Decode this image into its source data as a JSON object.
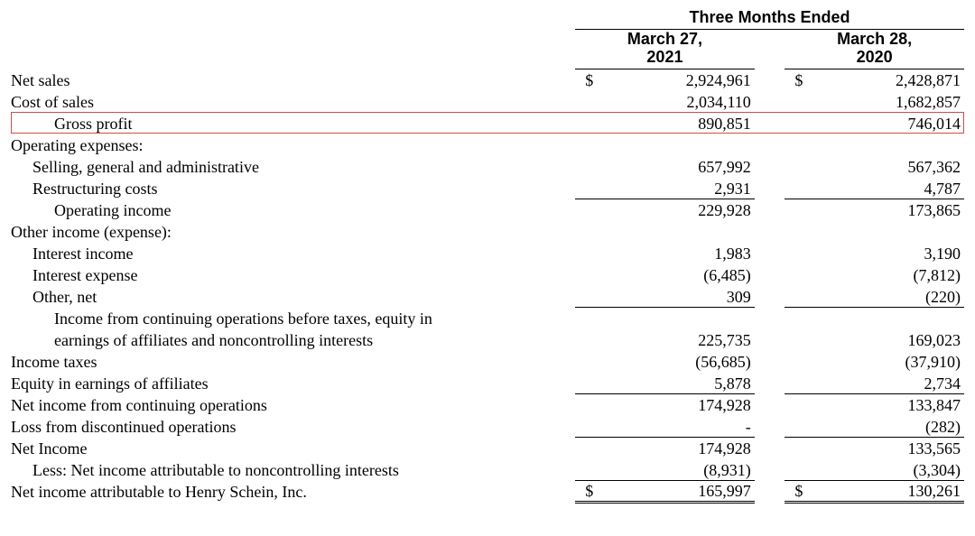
{
  "header": {
    "super": "Three Months Ended",
    "col1_line1": "March 27,",
    "col1_line2": "2021",
    "col2_line1": "March 28,",
    "col2_line2": "2020"
  },
  "rows": {
    "net_sales": {
      "label": "Net sales",
      "c1": "2,924,961",
      "c2": "2,428,871",
      "cur": "$"
    },
    "cost_sales": {
      "label": "Cost of sales",
      "c1": "2,034,110",
      "c2": "1,682,857"
    },
    "gross_profit": {
      "label": "Gross profit",
      "c1": "890,851",
      "c2": "746,014"
    },
    "opex_hdr": {
      "label": "Operating expenses:"
    },
    "sga": {
      "label": "Selling, general and administrative",
      "c1": "657,992",
      "c2": "567,362"
    },
    "restructuring": {
      "label": "Restructuring costs",
      "c1": "2,931",
      "c2": "4,787"
    },
    "op_income": {
      "label": "Operating income",
      "c1": "229,928",
      "c2": "173,865"
    },
    "other_hdr": {
      "label": "Other income (expense):"
    },
    "int_income": {
      "label": "Interest income",
      "c1": "1,983",
      "c2": "3,190"
    },
    "int_expense": {
      "label": "Interest expense",
      "c1": "(6,485)",
      "c2": "(7,812)"
    },
    "other_net": {
      "label": "Other, net",
      "c1": "309",
      "c2": "(220)"
    },
    "pretax1": {
      "label": "Income from continuing operations before taxes, equity in"
    },
    "pretax2": {
      "label": "earnings of affiliates and noncontrolling interests",
      "c1": "225,735",
      "c2": "169,023"
    },
    "taxes": {
      "label": "Income taxes",
      "c1": "(56,685)",
      "c2": "(37,910)"
    },
    "equity_aff": {
      "label": "Equity in earnings of affiliates",
      "c1": "5,878",
      "c2": "2,734"
    },
    "nic_ops": {
      "label": "Net income from continuing operations",
      "c1": "174,928",
      "c2": "133,847"
    },
    "disc_ops": {
      "label": "Loss from discontinued operations",
      "c1": "-",
      "c2": "(282)"
    },
    "net_income": {
      "label": "Net Income",
      "c1": "174,928",
      "c2": "133,565"
    },
    "nci": {
      "label": "Less: Net income attributable to noncontrolling interests",
      "c1": "(8,931)",
      "c2": "(3,304)"
    },
    "ni_attr": {
      "label": "Net income attributable to Henry Schein, Inc.",
      "c1": "165,997",
      "c2": "130,261",
      "cur": "$"
    }
  },
  "style": {
    "highlight_color": "#d44a4a",
    "font_family": "Times New Roman",
    "header_font_family": "Arial",
    "text_color": "#000000",
    "background": "#ffffff",
    "col_widths": {
      "label": 560,
      "cur": 18,
      "num": 160,
      "spacer": 30
    }
  }
}
